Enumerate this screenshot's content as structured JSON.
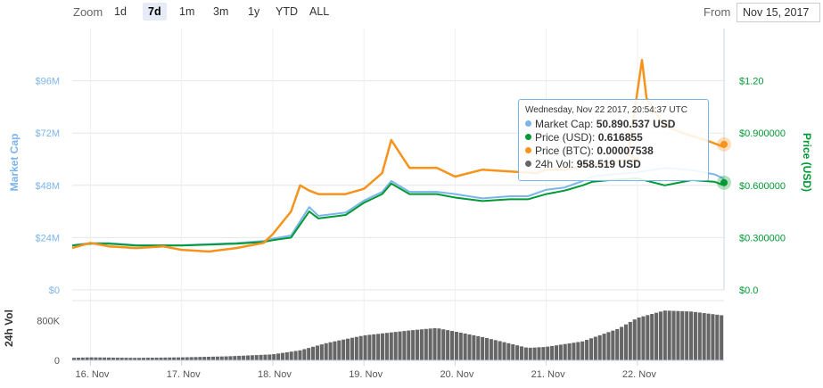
{
  "zoom": {
    "label": "Zoom",
    "buttons": [
      "1d",
      "7d",
      "1m",
      "3m",
      "1y",
      "YTD",
      "ALL"
    ],
    "active": "7d"
  },
  "range": {
    "from_label": "From",
    "from_value": "Nov 15, 2017"
  },
  "tooltip": {
    "date": "Wednesday, Nov 22 2017, 20:54:37 UTC",
    "rows": [
      {
        "label": "Market Cap:",
        "value": "50.890.537 USD",
        "color": "#7cb5ec"
      },
      {
        "label": "Price (USD):",
        "value": "0.616855",
        "color": "#009933"
      },
      {
        "label": "Price (BTC):",
        "value": "0.00007538",
        "color": "#f7931a"
      },
      {
        "label": "24h Vol:",
        "value": "958.519 USD",
        "color": "#666666"
      }
    ]
  },
  "chart_data": {
    "type": "line",
    "x_tick_labels": [
      "16. Nov",
      "17. Nov",
      "18. Nov",
      "19. Nov",
      "20. Nov",
      "21. Nov",
      "22. Nov"
    ],
    "left_axis": {
      "title": "Market Cap",
      "ticks": [
        "$0",
        "$24M",
        "$48M",
        "$72M",
        "$96M"
      ],
      "range": [
        0,
        120000000
      ],
      "color": "#7cb5ec"
    },
    "right_axis": {
      "title": "Price (USD)",
      "ticks": [
        "$0.0",
        "$0.300000",
        "$0.600000",
        "$0.900000",
        "$1.20"
      ],
      "range": [
        0,
        1.5
      ],
      "color": "#009933"
    },
    "volume_axis": {
      "title": "24h Vol",
      "ticks": [
        "0",
        "800K"
      ],
      "range": [
        0,
        1200000
      ]
    },
    "colors": {
      "market_cap": "#7cb5ec",
      "price_usd": "#009933",
      "price_btc": "#f7931a",
      "volume": "#666666"
    },
    "series": [
      {
        "key": "market_cap",
        "x": [
          15.8,
          16.0,
          16.2,
          16.5,
          17.0,
          17.3,
          17.6,
          17.9,
          18.0,
          18.2,
          18.4,
          18.5,
          18.8,
          19.0,
          19.2,
          19.3,
          19.5,
          19.8,
          20.0,
          20.3,
          20.6,
          20.8,
          21.0,
          21.2,
          21.4,
          21.5,
          21.7,
          22.0,
          22.3,
          22.6,
          22.85,
          22.95
        ],
        "y": [
          20.5,
          21.5,
          21.5,
          20.5,
          20.5,
          21.0,
          21.5,
          22.5,
          23.5,
          25.0,
          38.0,
          34.0,
          35.5,
          41.0,
          45.0,
          50.0,
          45.0,
          45.0,
          44.0,
          42.0,
          43.0,
          43.0,
          46.0,
          47.0,
          50.0,
          52.0,
          53.0,
          54.0,
          56.0,
          55.0,
          53.0,
          51.0
        ]
      },
      {
        "key": "price_usd",
        "x": [
          15.8,
          16.0,
          16.2,
          16.5,
          17.0,
          17.3,
          17.6,
          17.9,
          18.0,
          18.2,
          18.4,
          18.5,
          18.8,
          19.0,
          19.2,
          19.3,
          19.5,
          19.8,
          20.0,
          20.3,
          20.6,
          20.8,
          21.0,
          21.2,
          21.4,
          21.5,
          21.7,
          22.0,
          22.3,
          22.6,
          22.85,
          22.95
        ],
        "y": [
          0.255,
          0.265,
          0.265,
          0.255,
          0.255,
          0.26,
          0.265,
          0.275,
          0.285,
          0.3,
          0.45,
          0.41,
          0.43,
          0.5,
          0.55,
          0.61,
          0.55,
          0.55,
          0.53,
          0.51,
          0.52,
          0.52,
          0.55,
          0.57,
          0.6,
          0.62,
          0.63,
          0.64,
          0.6,
          0.63,
          0.62,
          0.6
        ]
      },
      {
        "key": "price_btc",
        "x": [
          15.8,
          16.0,
          16.2,
          16.5,
          16.8,
          17.0,
          17.3,
          17.6,
          17.9,
          18.0,
          18.2,
          18.3,
          18.4,
          18.5,
          18.8,
          19.0,
          19.2,
          19.3,
          19.5,
          19.8,
          20.0,
          20.3,
          20.6,
          20.9,
          21.0,
          21.2,
          21.5,
          21.8,
          22.0,
          21.9,
          22.05,
          22.1,
          22.3,
          22.5,
          22.8,
          22.95
        ],
        "y": [
          0.24,
          0.27,
          0.25,
          0.24,
          0.25,
          0.23,
          0.22,
          0.24,
          0.27,
          0.32,
          0.45,
          0.6,
          0.57,
          0.55,
          0.55,
          0.58,
          0.67,
          0.86,
          0.7,
          0.7,
          0.65,
          0.69,
          0.68,
          0.67,
          0.69,
          0.69,
          0.72,
          0.74,
          0.75,
          0.78,
          1.32,
          1.1,
          0.94,
          0.9,
          0.85,
          0.82
        ]
      },
      {
        "key": "volume",
        "x": [
          15.8,
          16.0,
          16.5,
          17.0,
          17.5,
          18.0,
          18.3,
          18.6,
          19.0,
          19.5,
          19.8,
          20.0,
          20.3,
          20.6,
          20.8,
          21.0,
          21.4,
          21.8,
          22.0,
          22.3,
          22.6,
          22.95
        ],
        "y": [
          50000,
          60000,
          50000,
          60000,
          80000,
          120000,
          200000,
          350000,
          500000,
          600000,
          650000,
          580000,
          470000,
          340000,
          250000,
          270000,
          380000,
          640000,
          850000,
          1000000,
          980000,
          900000
        ]
      }
    ]
  }
}
